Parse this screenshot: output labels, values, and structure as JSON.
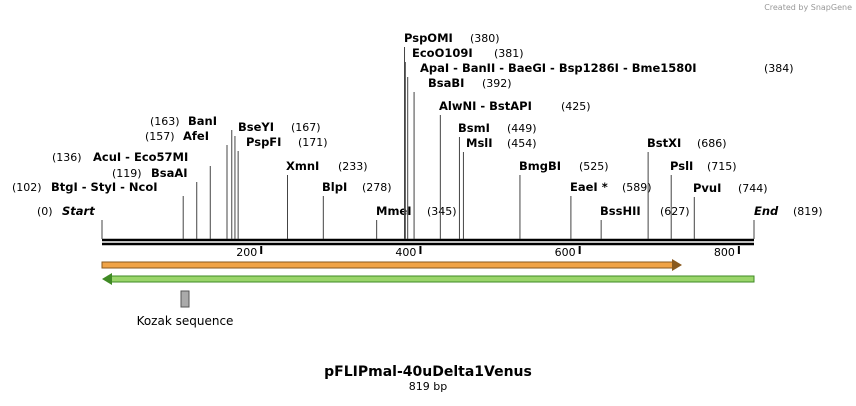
{
  "credit": "Created by SnapGene",
  "title": "pFLIPmal-40uDelta1Venus",
  "length_label": "819 bp",
  "sites": [
    {
      "name": "Start",
      "position": 0,
      "position_label": "(0)"
    },
    {
      "name": "BtgI - StyI - NcoI",
      "position": 102,
      "position_label": "(102)"
    },
    {
      "name": "BsaAI",
      "position": 119,
      "position_label": "(119)"
    },
    {
      "name": "AcuI - Eco57MI",
      "position": 136,
      "position_label": "(136)"
    },
    {
      "name": "AfeI",
      "position": 157,
      "position_label": "(157)"
    },
    {
      "name": "BanI",
      "position": 163,
      "position_label": "(163)"
    },
    {
      "name": "BseYI",
      "position": 167,
      "position_label": "(167)"
    },
    {
      "name": "PspFI",
      "position": 171,
      "position_label": "(171)"
    },
    {
      "name": "XmnI",
      "position": 233,
      "position_label": "(233)"
    },
    {
      "name": "BlpI",
      "position": 278,
      "position_label": "(278)"
    },
    {
      "name": "MmeI",
      "position": 345,
      "position_label": "(345)"
    },
    {
      "name": "PspOMI",
      "position": 380,
      "position_label": "(380)"
    },
    {
      "name": "EcoO109I",
      "position": 381,
      "position_label": "(381)"
    },
    {
      "name": "ApaI - BanII - BaeGI - Bsp1286I - Bme1580I",
      "position": 384,
      "position_label": "(384)"
    },
    {
      "name": "BsaBI",
      "position": 392,
      "position_label": "(392)"
    },
    {
      "name": "AlwNI - BstAPI",
      "position": 425,
      "position_label": "(425)"
    },
    {
      "name": "BsmI",
      "position": 449,
      "position_label": "(449)"
    },
    {
      "name": "MslI",
      "position": 454,
      "position_label": "(454)"
    },
    {
      "name": "BmgBI",
      "position": 525,
      "position_label": "(525)"
    },
    {
      "name": "EaeI *",
      "position": 589,
      "position_label": "(589)"
    },
    {
      "name": "BssHII",
      "position": 627,
      "position_label": "(627)"
    },
    {
      "name": "BstXI",
      "position": 686,
      "position_label": "(686)"
    },
    {
      "name": "PslI",
      "position": 715,
      "position_label": "(715)"
    },
    {
      "name": "PvuI",
      "position": 744,
      "position_label": "(744)"
    },
    {
      "name": "End",
      "position": 819,
      "position_label": "(819)"
    }
  ],
  "ruler": [
    200,
    400,
    600,
    800
  ],
  "features": [
    {
      "label": "Kozak sequence"
    }
  ]
}
